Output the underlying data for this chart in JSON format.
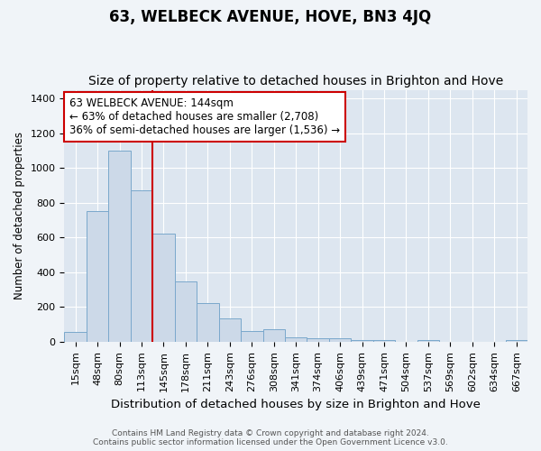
{
  "title": "63, WELBECK AVENUE, HOVE, BN3 4JQ",
  "subtitle": "Size of property relative to detached houses in Brighton and Hove",
  "xlabel": "Distribution of detached houses by size in Brighton and Hove",
  "ylabel": "Number of detached properties",
  "footer_line1": "Contains HM Land Registry data © Crown copyright and database right 2024.",
  "footer_line2": "Contains public sector information licensed under the Open Government Licence v3.0.",
  "categories": [
    "15sqm",
    "48sqm",
    "80sqm",
    "113sqm",
    "145sqm",
    "178sqm",
    "211sqm",
    "243sqm",
    "276sqm",
    "308sqm",
    "341sqm",
    "374sqm",
    "406sqm",
    "439sqm",
    "471sqm",
    "504sqm",
    "537sqm",
    "569sqm",
    "602sqm",
    "634sqm",
    "667sqm"
  ],
  "values": [
    55,
    750,
    1100,
    870,
    625,
    345,
    225,
    135,
    62,
    70,
    28,
    22,
    20,
    12,
    10,
    0,
    10,
    0,
    0,
    0,
    12
  ],
  "bar_color": "#ccd9e8",
  "bar_edge_color": "#7aa8cc",
  "annotation_text": "63 WELBECK AVENUE: 144sqm\n← 63% of detached houses are smaller (2,708)\n36% of semi-detached houses are larger (1,536) →",
  "annotation_box_color": "#ffffff",
  "annotation_box_edge_color": "#cc0000",
  "vline_x": 3.5,
  "vline_color": "#cc0000",
  "ylim": [
    0,
    1450
  ],
  "yticks": [
    0,
    200,
    400,
    600,
    800,
    1000,
    1200,
    1400
  ],
  "plot_bg_color": "#dde6f0",
  "grid_color": "#ffffff",
  "fig_bg_color": "#f0f4f8",
  "title_fontsize": 12,
  "subtitle_fontsize": 10,
  "xlabel_fontsize": 9.5,
  "ylabel_fontsize": 8.5,
  "tick_fontsize": 8,
  "annot_fontsize": 8.5,
  "footer_fontsize": 6.5
}
